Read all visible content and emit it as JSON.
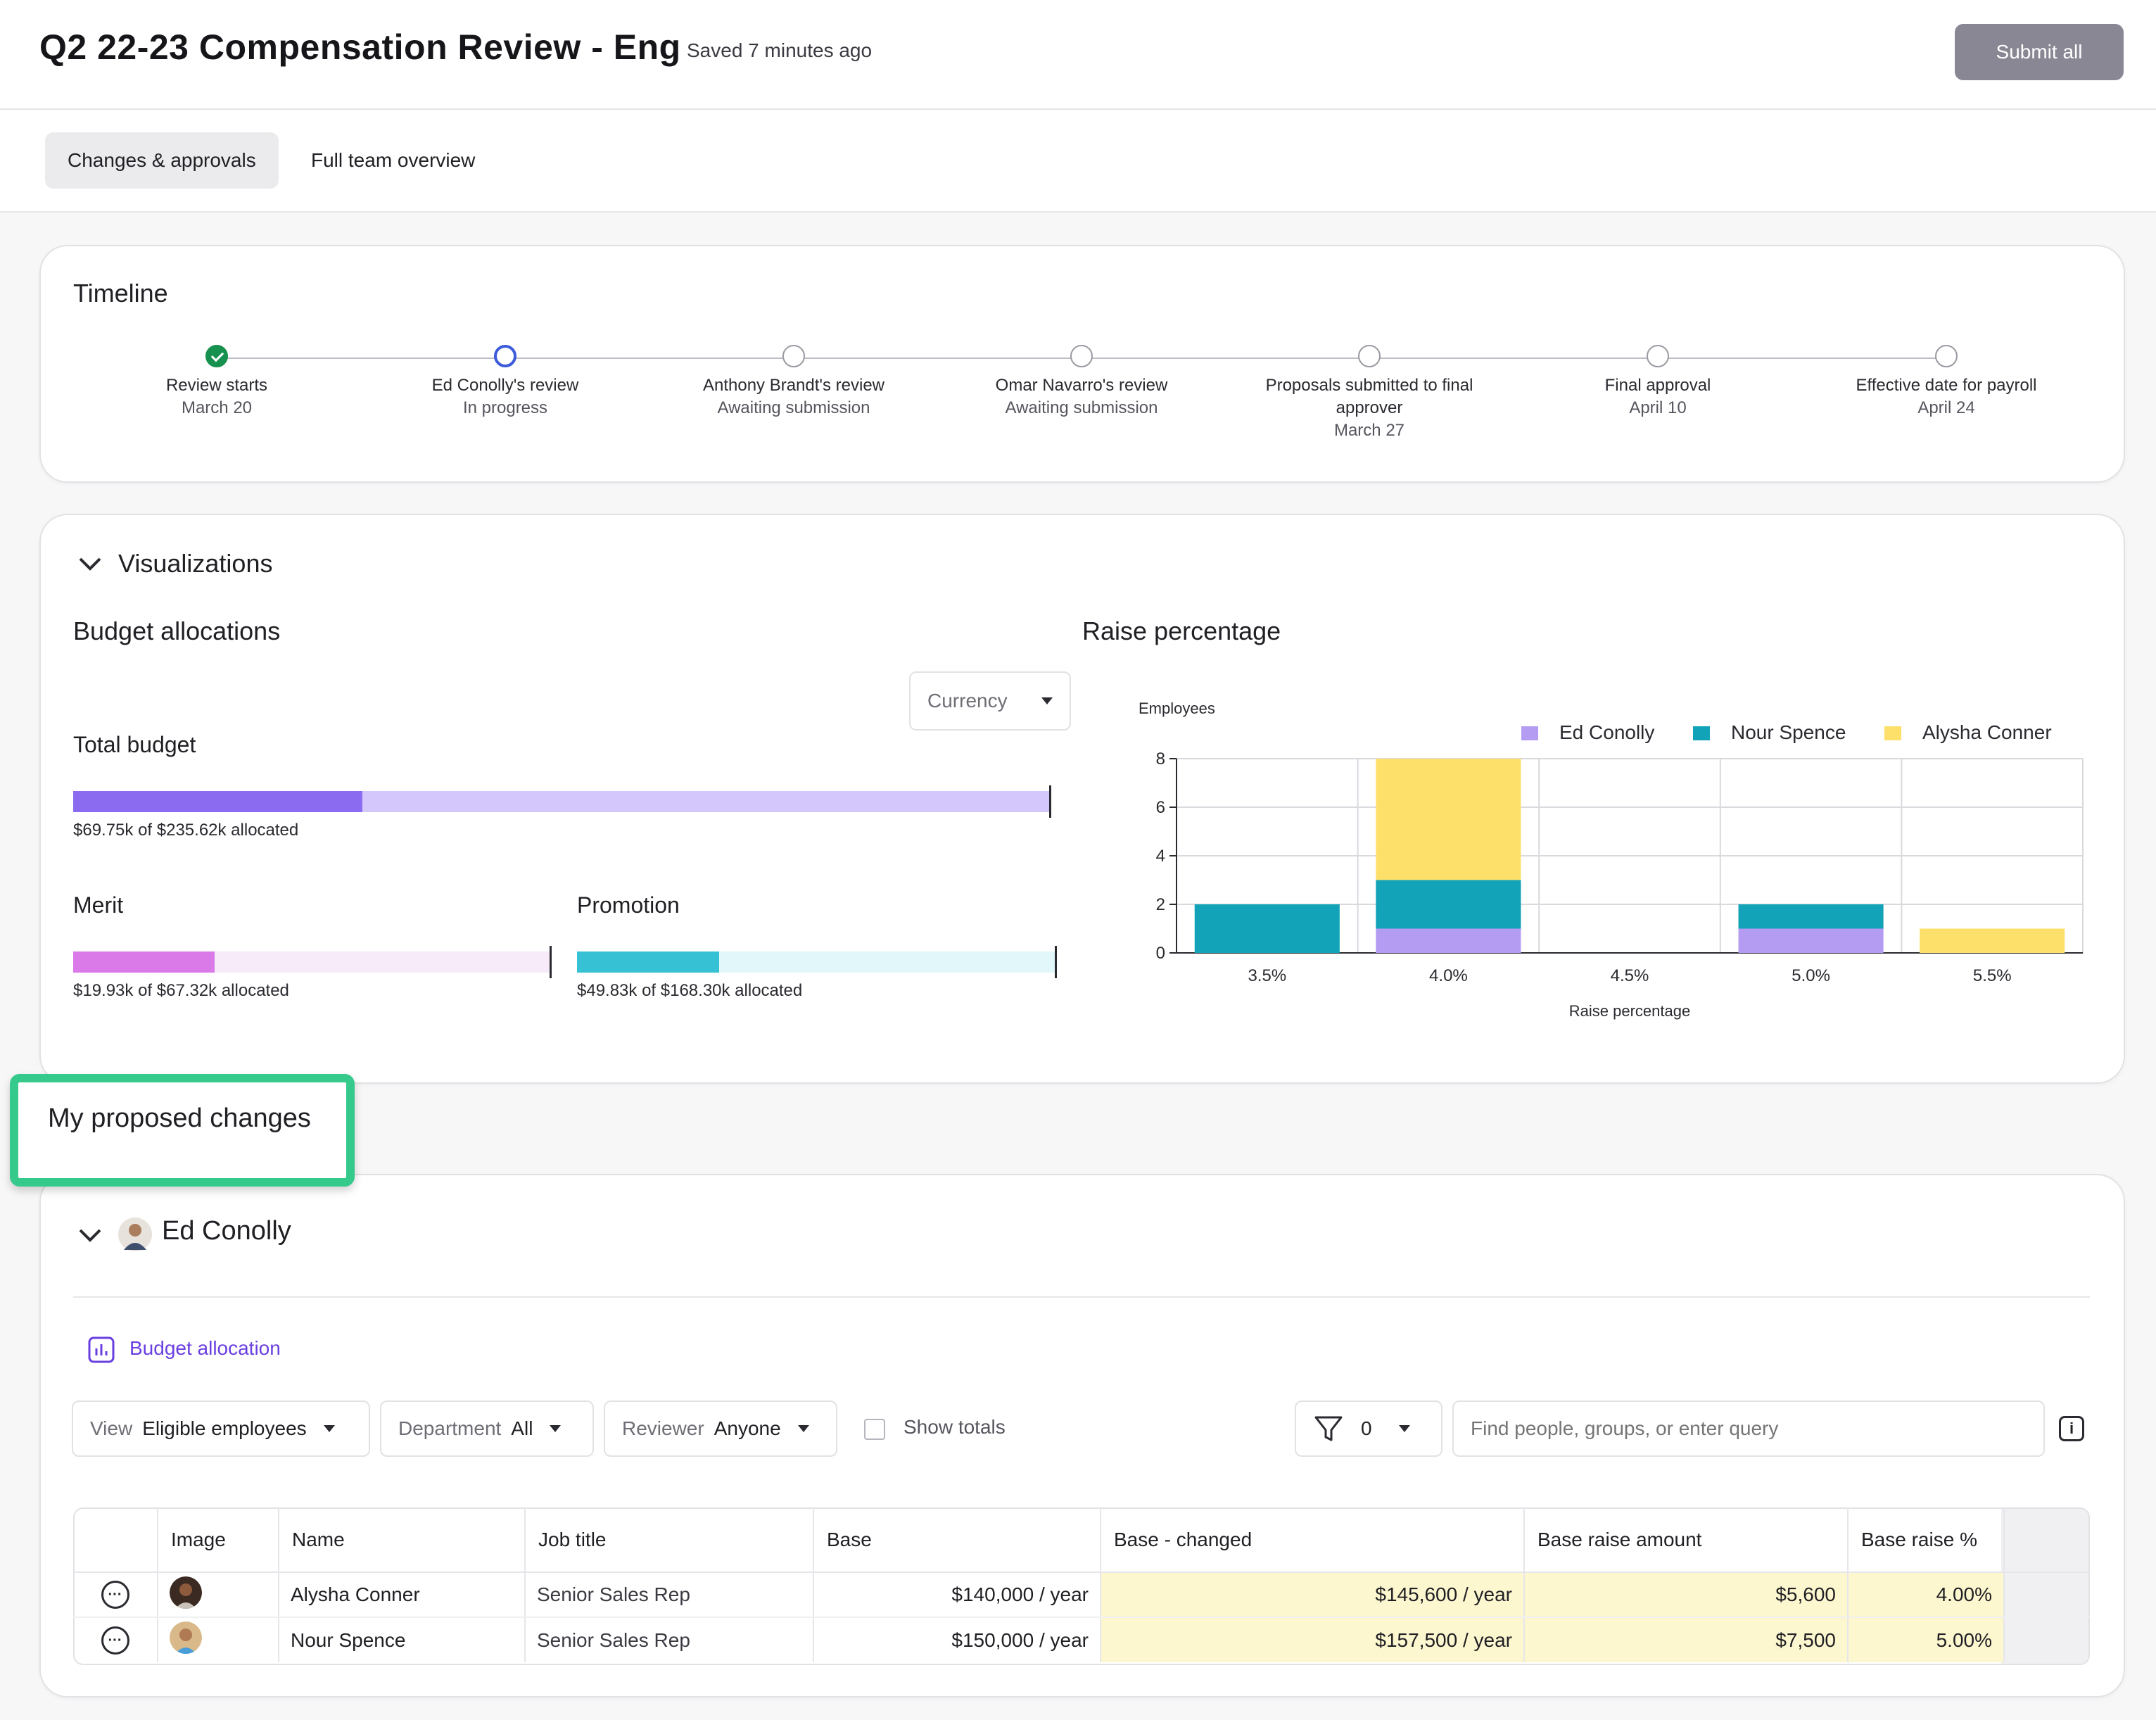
{
  "header": {
    "title": "Q2 22-23 Compensation Review - Eng",
    "saved_status": "Saved 7 minutes ago",
    "submit_label": "Submit all"
  },
  "tabs": [
    {
      "label": "Changes & approvals",
      "active": true
    },
    {
      "label": "Full team overview",
      "active": false
    }
  ],
  "timeline": {
    "title": "Timeline",
    "steps": [
      {
        "label": "Review starts",
        "sub": "March 20",
        "state": "done"
      },
      {
        "label": "Ed Conolly's review",
        "sub": "In progress",
        "state": "current"
      },
      {
        "label": "Anthony Brandt's review",
        "sub": "Awaiting submission",
        "state": "pending"
      },
      {
        "label": "Omar Navarro's review",
        "sub": "Awaiting submission",
        "state": "pending"
      },
      {
        "label": "Proposals submitted to final approver",
        "sub": "March 27",
        "state": "pending"
      },
      {
        "label": "Final approval",
        "sub": "April 10",
        "state": "pending"
      },
      {
        "label": "Effective date for payroll",
        "sub": "April 24",
        "state": "pending"
      }
    ]
  },
  "visualizations": {
    "title": "Visualizations",
    "budget": {
      "title": "Budget allocations",
      "currency_label": "Currency",
      "total": {
        "label": "Total budget",
        "caption": "$69.75k of $235.62k allocated",
        "fraction": 0.296
      },
      "merit": {
        "label": "Merit",
        "caption": "$19.93k of $67.32k allocated",
        "fraction": 0.296
      },
      "promotion": {
        "label": "Promotion",
        "caption": "$49.83k of $168.30k allocated",
        "fraction": 0.296
      }
    },
    "colors": {
      "purple": "#8b6cf0",
      "purple_light": "#d4c7fb",
      "magenta": "#d97ae8",
      "magenta_light": "#f7eaf9",
      "cyan": "#36c1d4",
      "cyan_light": "#e2f7fa"
    }
  },
  "chart_data": {
    "type": "bar",
    "stacked": true,
    "title": "Raise percentage",
    "ylabel": "Employees",
    "xlabel": "Raise percentage",
    "categories": [
      "3.5%",
      "4.0%",
      "4.5%",
      "5.0%",
      "5.5%"
    ],
    "ylim": [
      0,
      8
    ],
    "yticks": [
      0,
      2,
      4,
      6,
      8
    ],
    "grid": true,
    "legend_position": "top-right",
    "series": [
      {
        "name": "Ed Conolly",
        "color": "#b39cf2",
        "values": [
          0,
          1,
          0,
          1,
          0
        ]
      },
      {
        "name": "Nour Spence",
        "color": "#12a3b8",
        "values": [
          2,
          2,
          0,
          1,
          0
        ]
      },
      {
        "name": "Alysha Conner",
        "color": "#fde06a",
        "values": [
          0,
          5,
          0,
          0,
          1
        ]
      }
    ]
  },
  "highlight": {
    "label": "My proposed changes"
  },
  "section": {
    "name": "Ed Conolly",
    "budget_link": "Budget allocation",
    "filters": {
      "view_label": "View",
      "view_value": "Eligible employees",
      "department_label": "Department",
      "department_value": "All",
      "reviewer_label": "Reviewer",
      "reviewer_value": "Anyone",
      "show_totals": "Show totals",
      "filter_count": "0",
      "search_placeholder": "Find people, groups, or enter query"
    },
    "table": {
      "columns": [
        "Image",
        "Name",
        "Job title",
        "Base",
        "Base - changed",
        "Base raise amount",
        "Base raise %"
      ],
      "rows": [
        {
          "name": "Alysha Conner",
          "job": "Senior Sales Rep",
          "base": "$140,000 / year",
          "changed": "$145,600 / year",
          "amount": "$5,600",
          "pct": "4.00%"
        },
        {
          "name": "Nour Spence",
          "job": "Senior Sales Rep",
          "base": "$150,000 / year",
          "changed": "$157,500 / year",
          "amount": "$7,500",
          "pct": "5.00%"
        }
      ]
    }
  }
}
